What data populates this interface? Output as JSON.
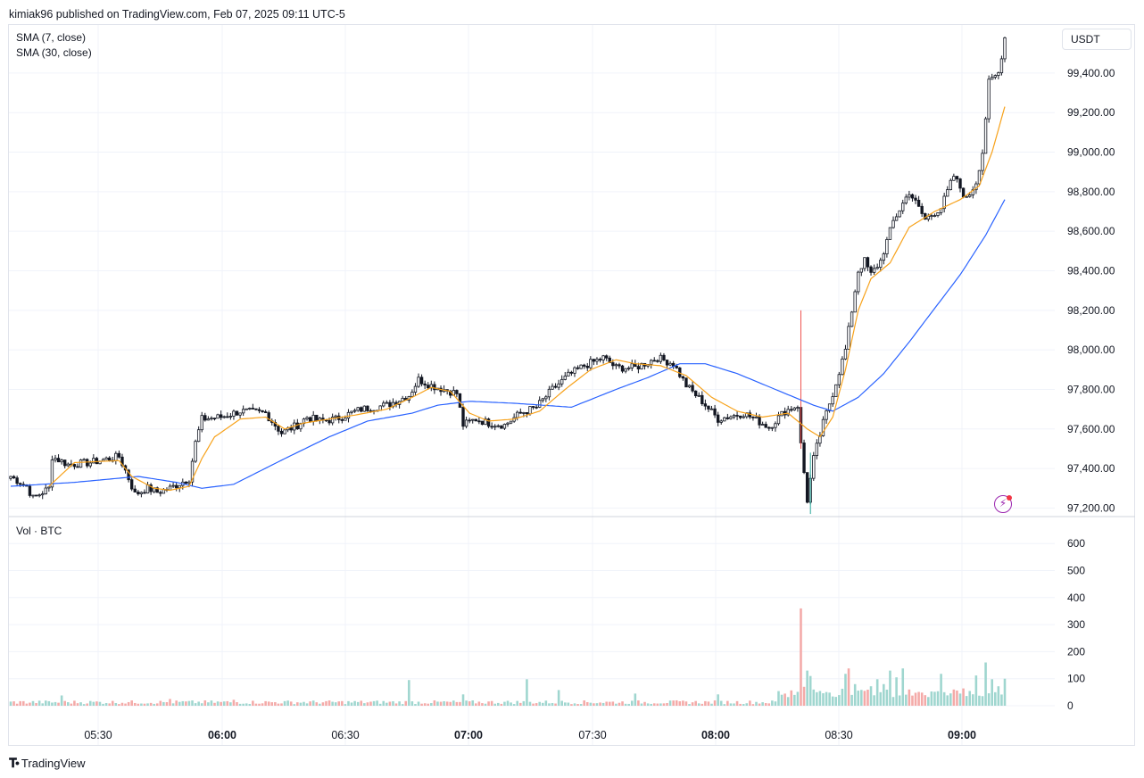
{
  "header": {
    "published_text": "kimiak96 published on TradingView.com, Feb 07, 2025 09:11 UTC-5"
  },
  "legend": {
    "sma_fast": "SMA (7, close)",
    "sma_slow": "SMA (30, close)",
    "volume": "Vol · BTC"
  },
  "currency_button": "USDT",
  "brand": {
    "name": "TradingView",
    "logo_icon": "tradingview-logo-icon"
  },
  "colors": {
    "up": "#26a69a",
    "down": "#ef5350",
    "candle_up_fill": "#ffffff",
    "candle_body": "#131722",
    "sma_fast": "#f7a21b",
    "sma_slow": "#2962ff",
    "vol_up": "#9fd6cf",
    "vol_down": "#f4aaa8",
    "grid": "#f0f3fa"
  },
  "chart_data": [
    {
      "type": "candlestick",
      "title": "",
      "series": [
        {
          "name": "SMA (7, close)"
        },
        {
          "name": "SMA (30, close)"
        }
      ],
      "x_labels": [
        "05:30",
        "06:00",
        "06:30",
        "07:00",
        "07:30",
        "08:00",
        "08:30",
        "09:00"
      ],
      "bold_x_labels": [
        "06:00",
        "07:00",
        "08:00",
        "09:00"
      ],
      "y_ticks": [
        "97,200.00",
        "97,400.00",
        "97,600.00",
        "97,800.00",
        "98,000.00",
        "98,200.00",
        "98,400.00",
        "98,600.00",
        "98,800.00",
        "99,000.00",
        "99,200.00",
        "99,400.00"
      ],
      "ylim": [
        97150,
        99650
      ],
      "close_path": [
        [
          0,
          97360
        ],
        [
          5,
          97310
        ],
        [
          7,
          97250
        ],
        [
          12,
          97300
        ],
        [
          13,
          97460
        ],
        [
          18,
          97420
        ],
        [
          25,
          97430
        ],
        [
          34,
          97460
        ],
        [
          36,
          97390
        ],
        [
          39,
          97270
        ],
        [
          43,
          97300
        ],
        [
          46,
          97280
        ],
        [
          50,
          97300
        ],
        [
          56,
          97350
        ],
        [
          58,
          97530
        ],
        [
          60,
          97650
        ],
        [
          66,
          97660
        ],
        [
          72,
          97690
        ],
        [
          80,
          97680
        ],
        [
          85,
          97580
        ],
        [
          90,
          97620
        ],
        [
          93,
          97660
        ],
        [
          97,
          97640
        ],
        [
          102,
          97650
        ],
        [
          110,
          97700
        ],
        [
          118,
          97720
        ],
        [
          125,
          97770
        ],
        [
          128,
          97850
        ],
        [
          132,
          97820
        ],
        [
          136,
          97800
        ],
        [
          140,
          97780
        ],
        [
          142,
          97620
        ],
        [
          146,
          97650
        ],
        [
          150,
          97630
        ],
        [
          155,
          97620
        ],
        [
          160,
          97680
        ],
        [
          165,
          97710
        ],
        [
          170,
          97800
        ],
        [
          175,
          97870
        ],
        [
          180,
          97920
        ],
        [
          186,
          97960
        ],
        [
          190,
          97910
        ],
        [
          196,
          97910
        ],
        [
          203,
          97960
        ],
        [
          208,
          97930
        ],
        [
          212,
          97820
        ],
        [
          217,
          97740
        ],
        [
          222,
          97650
        ],
        [
          230,
          97680
        ],
        [
          238,
          97610
        ],
        [
          243,
          97690
        ],
        [
          247,
          97720
        ],
        [
          248,
          97520
        ],
        [
          250,
          97240
        ],
        [
          252,
          97450
        ],
        [
          255,
          97630
        ],
        [
          258,
          97780
        ],
        [
          262,
          98000
        ],
        [
          264,
          98200
        ],
        [
          266,
          98400
        ],
        [
          268,
          98450
        ],
        [
          270,
          98380
        ],
        [
          273,
          98450
        ],
        [
          277,
          98650
        ],
        [
          282,
          98800
        ],
        [
          287,
          98660
        ],
        [
          292,
          98720
        ],
        [
          296,
          98880
        ],
        [
          300,
          98760
        ],
        [
          303,
          98850
        ],
        [
          305,
          99000
        ],
        [
          307,
          99350
        ],
        [
          310,
          99400
        ],
        [
          312,
          99580
        ]
      ],
      "candles_count": 313,
      "sma_fast_path": [
        [
          12,
          97310
        ],
        [
          20,
          97430
        ],
        [
          34,
          97440
        ],
        [
          38,
          97360
        ],
        [
          45,
          97300
        ],
        [
          50,
          97290
        ],
        [
          56,
          97310
        ],
        [
          60,
          97450
        ],
        [
          64,
          97560
        ],
        [
          72,
          97650
        ],
        [
          80,
          97660
        ],
        [
          86,
          97600
        ],
        [
          92,
          97630
        ],
        [
          100,
          97650
        ],
        [
          108,
          97670
        ],
        [
          118,
          97700
        ],
        [
          126,
          97760
        ],
        [
          132,
          97810
        ],
        [
          138,
          97790
        ],
        [
          144,
          97680
        ],
        [
          150,
          97640
        ],
        [
          158,
          97650
        ],
        [
          166,
          97690
        ],
        [
          174,
          97800
        ],
        [
          182,
          97900
        ],
        [
          190,
          97950
        ],
        [
          196,
          97930
        ],
        [
          204,
          97920
        ],
        [
          212,
          97870
        ],
        [
          220,
          97760
        ],
        [
          228,
          97690
        ],
        [
          236,
          97660
        ],
        [
          244,
          97680
        ],
        [
          250,
          97600
        ],
        [
          254,
          97560
        ],
        [
          258,
          97660
        ],
        [
          262,
          97900
        ],
        [
          266,
          98200
        ],
        [
          270,
          98360
        ],
        [
          276,
          98440
        ],
        [
          282,
          98620
        ],
        [
          290,
          98700
        ],
        [
          298,
          98760
        ],
        [
          304,
          98830
        ],
        [
          308,
          99000
        ],
        [
          312,
          99230
        ]
      ],
      "sma_slow_path": [
        [
          0,
          97310
        ],
        [
          20,
          97330
        ],
        [
          40,
          97360
        ],
        [
          52,
          97330
        ],
        [
          60,
          97300
        ],
        [
          70,
          97320
        ],
        [
          86,
          97450
        ],
        [
          100,
          97560
        ],
        [
          112,
          97640
        ],
        [
          126,
          97680
        ],
        [
          134,
          97720
        ],
        [
          144,
          97740
        ],
        [
          158,
          97730
        ],
        [
          176,
          97710
        ],
        [
          190,
          97800
        ],
        [
          200,
          97860
        ],
        [
          210,
          97930
        ],
        [
          218,
          97930
        ],
        [
          228,
          97880
        ],
        [
          240,
          97800
        ],
        [
          252,
          97720
        ],
        [
          258,
          97690
        ],
        [
          266,
          97760
        ],
        [
          274,
          97880
        ],
        [
          282,
          98040
        ],
        [
          290,
          98210
        ],
        [
          298,
          98380
        ],
        [
          306,
          98580
        ],
        [
          312,
          98760
        ]
      ]
    },
    {
      "type": "bar",
      "title": "",
      "series": [
        {
          "name": "Vol · BTC"
        }
      ],
      "y_ticks": [
        "0",
        "100",
        "200",
        "300",
        "400",
        "500",
        "600"
      ],
      "ylim": [
        0,
        600
      ],
      "spikes": [
        {
          "i": 16,
          "v": 38,
          "dir": "up"
        },
        {
          "i": 50,
          "v": 25,
          "dir": "down"
        },
        {
          "i": 70,
          "v": 22,
          "dir": "down"
        },
        {
          "i": 125,
          "v": 95,
          "dir": "up"
        },
        {
          "i": 142,
          "v": 42,
          "dir": "up"
        },
        {
          "i": 162,
          "v": 98,
          "dir": "up"
        },
        {
          "i": 172,
          "v": 58,
          "dir": "up"
        },
        {
          "i": 196,
          "v": 45,
          "dir": "up"
        },
        {
          "i": 222,
          "v": 42,
          "dir": "up"
        },
        {
          "i": 248,
          "v": 360,
          "dir": "down"
        },
        {
          "i": 249,
          "v": 70,
          "dir": "down"
        },
        {
          "i": 250,
          "v": 130,
          "dir": "up"
        },
        {
          "i": 251,
          "v": 110,
          "dir": "up"
        },
        {
          "i": 252,
          "v": 60,
          "dir": "up"
        },
        {
          "i": 253,
          "v": 50,
          "dir": "up"
        },
        {
          "i": 262,
          "v": 118,
          "dir": "up"
        },
        {
          "i": 263,
          "v": 138,
          "dir": "down"
        },
        {
          "i": 265,
          "v": 80,
          "dir": "up"
        },
        {
          "i": 268,
          "v": 55,
          "dir": "down"
        },
        {
          "i": 270,
          "v": 72,
          "dir": "up"
        },
        {
          "i": 272,
          "v": 98,
          "dir": "up"
        },
        {
          "i": 274,
          "v": 80,
          "dir": "up"
        },
        {
          "i": 276,
          "v": 130,
          "dir": "up"
        },
        {
          "i": 278,
          "v": 105,
          "dir": "up"
        },
        {
          "i": 280,
          "v": 138,
          "dir": "up"
        },
        {
          "i": 282,
          "v": 60,
          "dir": "down"
        },
        {
          "i": 284,
          "v": 48,
          "dir": "down"
        },
        {
          "i": 292,
          "v": 118,
          "dir": "up"
        },
        {
          "i": 293,
          "v": 50,
          "dir": "up"
        },
        {
          "i": 296,
          "v": 60,
          "dir": "down"
        },
        {
          "i": 298,
          "v": 45,
          "dir": "up"
        },
        {
          "i": 303,
          "v": 112,
          "dir": "up"
        },
        {
          "i": 306,
          "v": 160,
          "dir": "up"
        },
        {
          "i": 308,
          "v": 98,
          "dir": "up"
        },
        {
          "i": 310,
          "v": 72,
          "dir": "up"
        },
        {
          "i": 312,
          "v": 100,
          "dir": "up"
        }
      ]
    }
  ]
}
